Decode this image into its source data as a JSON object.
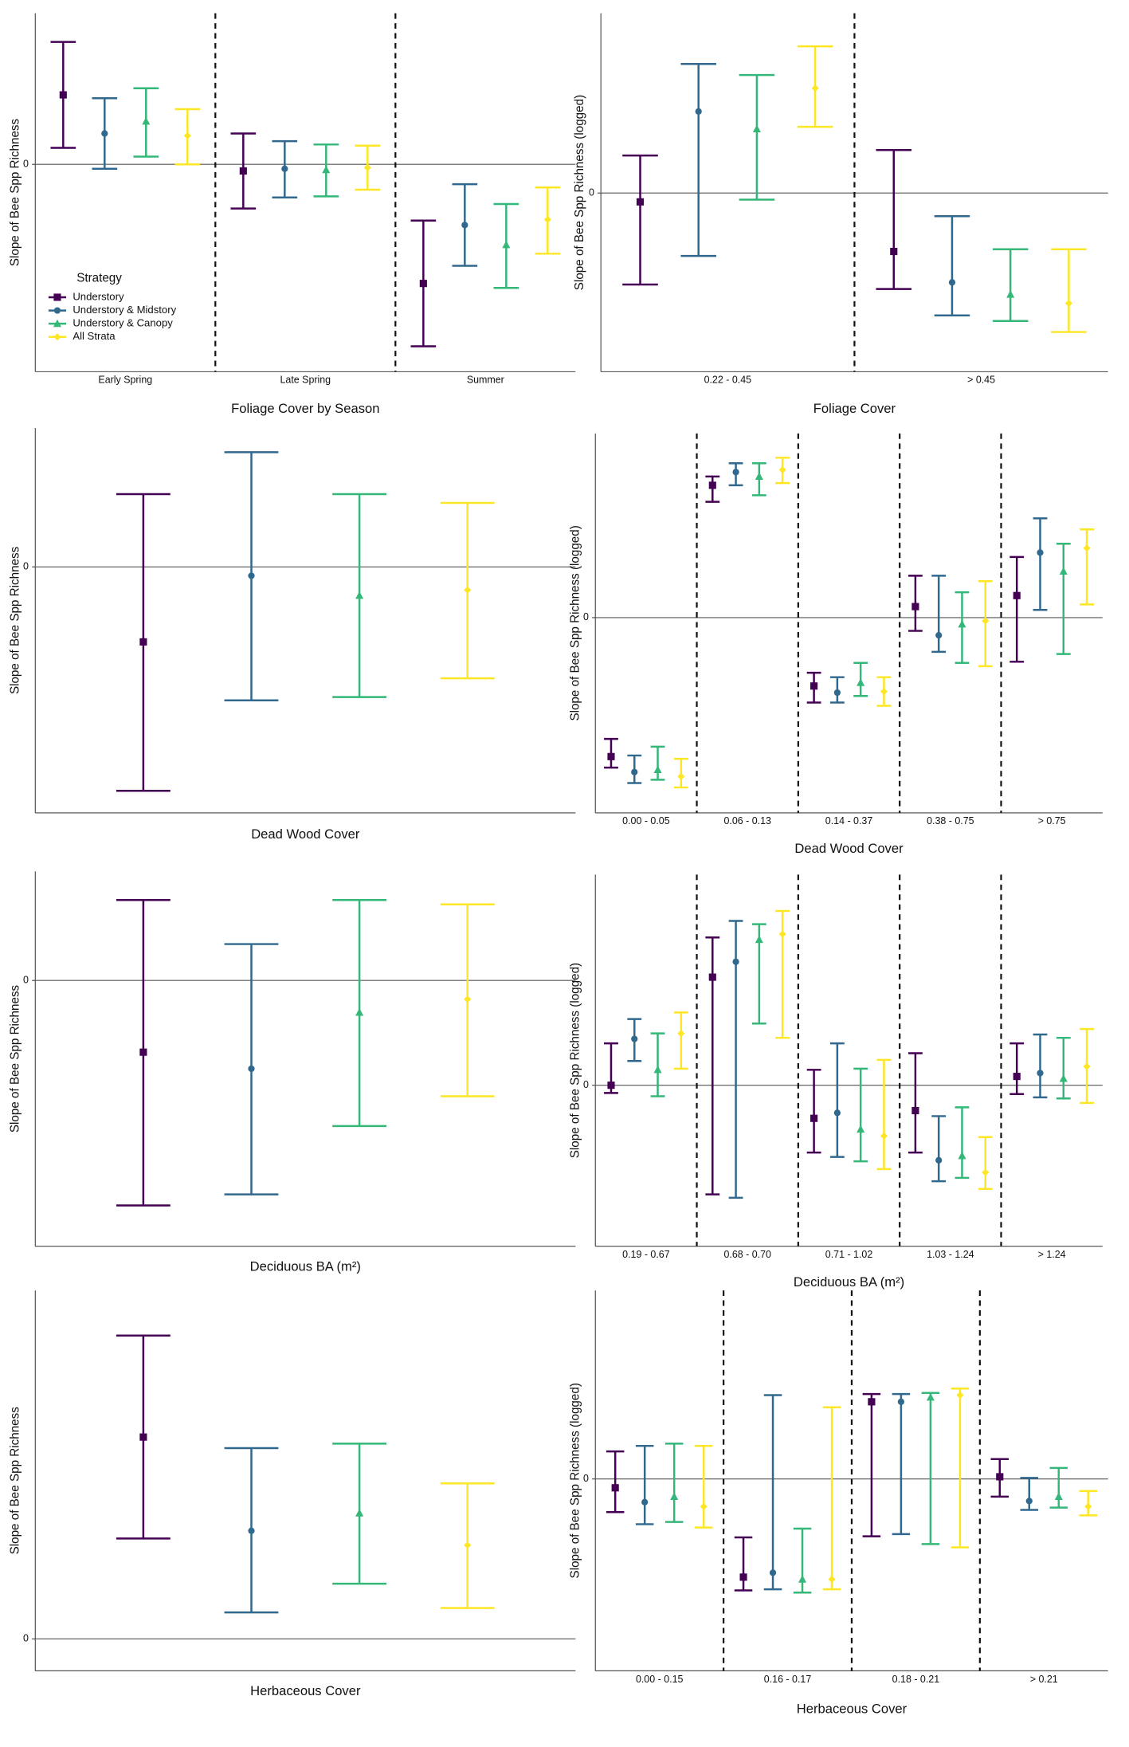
{
  "chart_data": [
    {
      "type": "errorbar",
      "x_label": "Foliage Cover by Season",
      "y_label": "Slope of Bee Spp Richness",
      "categories": [
        "Early Spring",
        "Late Spring",
        "Summer"
      ],
      "dividers": true,
      "ylim": [
        -18.8,
        13.7
      ],
      "yticks": [
        0
      ],
      "grid": true,
      "legend": {
        "title": "Strategy",
        "position": "left"
      },
      "series": [
        {
          "name": "Understory",
          "color": "#440154",
          "marker": "square",
          "values": [
            6.3,
            -0.6,
            -10.8
          ],
          "lower": [
            1.5,
            -4.0,
            -16.5
          ],
          "upper": [
            11.1,
            2.8,
            -5.1
          ]
        },
        {
          "name": "Understory & Midstory",
          "color": "#31688e",
          "marker": "circle",
          "values": [
            2.8,
            -0.4,
            -5.5
          ],
          "lower": [
            -0.4,
            -3.0,
            -9.2
          ],
          "upper": [
            6.0,
            2.1,
            -1.8
          ]
        },
        {
          "name": "Understory & Canopy",
          "color": "#35b779",
          "marker": "triangle",
          "values": [
            3.9,
            -0.5,
            -7.3
          ],
          "lower": [
            0.7,
            -2.9,
            -11.2
          ],
          "upper": [
            6.9,
            1.8,
            -3.6
          ]
        },
        {
          "name": "All Strata",
          "color": "#fde725",
          "marker": "diamond",
          "values": [
            2.6,
            -0.3,
            -5.0
          ],
          "lower": [
            0,
            -2.3,
            -8.1
          ],
          "upper": [
            5.0,
            1.7,
            -2.1
          ]
        }
      ]
    },
    {
      "type": "errorbar",
      "x_label": "Foliage Cover",
      "y_label": "Slope of Bee Spp Richness (logged)",
      "categories": [
        "0.22 - 0.45",
        "> 0.45"
      ],
      "dividers": true,
      "ylim": [
        -16.2,
        16.3
      ],
      "yticks": [
        0
      ],
      "grid": true,
      "series": [
        {
          "color": "#440154",
          "marker": "square",
          "values": [
            -0.8,
            -5.3
          ],
          "lower": [
            -8.3,
            -8.7
          ],
          "upper": [
            3.4,
            3.9
          ]
        },
        {
          "color": "#31688e",
          "marker": "circle",
          "values": [
            7.4,
            -8.1
          ],
          "lower": [
            -5.7,
            -11.1
          ],
          "upper": [
            11.7,
            -2.1
          ]
        },
        {
          "color": "#35b779",
          "marker": "triangle",
          "values": [
            5.8,
            -9.2
          ],
          "lower": [
            -0.6,
            -11.6
          ],
          "upper": [
            10.7,
            -5.1
          ]
        },
        {
          "color": "#fde725",
          "marker": "diamond",
          "values": [
            9.5,
            -10.0
          ],
          "lower": [
            6.0,
            -12.6
          ],
          "upper": [
            13.3,
            -5.1
          ]
        }
      ]
    },
    {
      "type": "errorbar",
      "x_label": "Dead Wood Cover",
      "y_label": "Slope of Bee Spp Richness",
      "dividers": false,
      "ylim": [
        -22.3,
        12.6
      ],
      "yticks": [
        0
      ],
      "grid": true,
      "series": [
        {
          "color": "#440154",
          "marker": "square",
          "values": [
            -6.8
          ],
          "lower": [
            -20.3
          ],
          "upper": [
            6.6
          ]
        },
        {
          "color": "#31688e",
          "marker": "circle",
          "values": [
            -0.8
          ],
          "lower": [
            -12.1
          ],
          "upper": [
            10.4
          ]
        },
        {
          "color": "#35b779",
          "marker": "triangle",
          "values": [
            -2.6
          ],
          "lower": [
            -11.8
          ],
          "upper": [
            6.6
          ]
        },
        {
          "color": "#fde725",
          "marker": "diamond",
          "values": [
            -2.1
          ],
          "lower": [
            -10.1
          ],
          "upper": [
            5.8
          ]
        }
      ]
    },
    {
      "type": "errorbar",
      "x_label": "Dead Wood Cover",
      "y_label": "Slope of Bee Spp Richness (logged)",
      "categories": [
        "0.00 - 0.05",
        "0.06 - 0.13",
        "0.14 - 0.37",
        "0.38 - 0.75",
        "> 0.75"
      ],
      "dividers": true,
      "ylim": [
        -17.7,
        16.7
      ],
      "yticks": [
        0
      ],
      "grid": true,
      "series": [
        {
          "color": "#440154",
          "marker": "square",
          "values": [
            -12.6,
            12.0,
            -6.2,
            1.0,
            2.0
          ],
          "lower": [
            -13.6,
            10.5,
            -7.7,
            -1.2,
            -4.0
          ],
          "upper": [
            -11.0,
            12.8,
            -5.0,
            3.8,
            5.5
          ]
        },
        {
          "color": "#31688e",
          "marker": "circle",
          "values": [
            -14.0,
            13.2,
            -6.8,
            -1.6,
            5.9
          ],
          "lower": [
            -15.0,
            12.0,
            -7.7,
            -3.1,
            0.7
          ],
          "upper": [
            -12.5,
            14.0,
            -5.4,
            3.8,
            9.0
          ]
        },
        {
          "color": "#35b779",
          "marker": "triangle",
          "values": [
            -13.8,
            12.8,
            -5.9,
            -0.6,
            4.2
          ],
          "lower": [
            -14.7,
            11.1,
            -7.1,
            -4.1,
            -3.3
          ],
          "upper": [
            -11.7,
            14.0,
            -4.1,
            2.3,
            6.7
          ]
        },
        {
          "color": "#fde725",
          "marker": "diamond",
          "values": [
            -14.4,
            13.4,
            -6.7,
            -0.3,
            6.3
          ],
          "lower": [
            -15.4,
            12.2,
            -8.0,
            -4.4,
            1.2
          ],
          "upper": [
            -12.8,
            14.5,
            -5.4,
            3.3,
            8.0
          ]
        }
      ]
    },
    {
      "type": "errorbar",
      "x_label": "Deciduous BA (m²)",
      "y_label": "Slope of Bee Spp Richness",
      "dividers": false,
      "ylim": [
        -24.1,
        9.9
      ],
      "yticks": [
        0
      ],
      "grid": true,
      "series": [
        {
          "color": "#440154",
          "marker": "square",
          "values": [
            -6.5
          ],
          "lower": [
            -20.4
          ],
          "upper": [
            7.3
          ]
        },
        {
          "color": "#31688e",
          "marker": "circle",
          "values": [
            -8.0
          ],
          "lower": [
            -19.4
          ],
          "upper": [
            3.3
          ]
        },
        {
          "color": "#35b779",
          "marker": "triangle",
          "values": [
            -2.9
          ],
          "lower": [
            -13.2
          ],
          "upper": [
            7.3
          ]
        },
        {
          "color": "#fde725",
          "marker": "diamond",
          "values": [
            -1.7
          ],
          "lower": [
            -10.5
          ],
          "upper": [
            6.9
          ]
        }
      ]
    },
    {
      "type": "errorbar",
      "x_label": "Deciduous BA (m²)",
      "y_label": "Slope of Bee Spp Richness (logged)",
      "categories": [
        "0.19 - 0.67",
        "0.68 - 0.70",
        "0.71 - 1.02",
        "1.03 - 1.24",
        "> 1.24"
      ],
      "dividers": true,
      "ylim": [
        -14.6,
        19.1
      ],
      "yticks": [
        0
      ],
      "grid": true,
      "series": [
        {
          "color": "#440154",
          "marker": "square",
          "values": [
            0,
            9.8,
            -3.0,
            -2.3,
            0.8
          ],
          "lower": [
            -0.7,
            -9.9,
            -6.1,
            -6.1,
            -0.8
          ],
          "upper": [
            3.8,
            13.4,
            1.4,
            2.9,
            3.8
          ]
        },
        {
          "color": "#31688e",
          "marker": "circle",
          "values": [
            4.2,
            11.2,
            -2.5,
            -6.8,
            1.1
          ],
          "lower": [
            2.2,
            -10.2,
            -6.5,
            -8.7,
            -1.1
          ],
          "upper": [
            6.0,
            14.9,
            3.8,
            -2.8,
            4.6
          ]
        },
        {
          "color": "#35b779",
          "marker": "triangle",
          "values": [
            1.4,
            13.2,
            -4.0,
            -6.4,
            0.6
          ],
          "lower": [
            -1.0,
            5.6,
            -6.9,
            -8.4,
            -1.2
          ],
          "upper": [
            4.7,
            14.6,
            1.5,
            -2.0,
            4.3
          ]
        },
        {
          "color": "#fde725",
          "marker": "diamond",
          "values": [
            4.7,
            13.7,
            -4.6,
            -7.9,
            1.7
          ],
          "lower": [
            1.5,
            4.3,
            -7.6,
            -9.4,
            -1.6
          ],
          "upper": [
            6.6,
            15.8,
            2.3,
            -4.7,
            5.1
          ]
        }
      ]
    },
    {
      "type": "errorbar",
      "x_label": "Herbaceous Cover",
      "y_label": "Slope of Bee Spp Richness",
      "dividers": false,
      "ylim": [
        -2.9,
        31.6
      ],
      "yticks": [
        0
      ],
      "grid": true,
      "series": [
        {
          "color": "#440154",
          "marker": "square",
          "values": [
            18.3
          ],
          "lower": [
            9.1
          ],
          "upper": [
            27.5
          ]
        },
        {
          "color": "#31688e",
          "marker": "circle",
          "values": [
            9.8
          ],
          "lower": [
            2.4
          ],
          "upper": [
            17.3
          ]
        },
        {
          "color": "#35b779",
          "marker": "triangle",
          "values": [
            11.4
          ],
          "lower": [
            5.0
          ],
          "upper": [
            17.7
          ]
        },
        {
          "color": "#fde725",
          "marker": "diamond",
          "values": [
            8.5
          ],
          "lower": [
            2.8
          ],
          "upper": [
            14.1
          ]
        }
      ]
    },
    {
      "type": "errorbar",
      "x_label": "Herbaceous Cover",
      "y_label": "Slope of Bee Spp Richness (logged)",
      "categories": [
        "0.00 - 0.15",
        "0.16 - 0.17",
        "0.18 - 0.21",
        "> 0.21"
      ],
      "dividers": true,
      "ylim": [
        -17.4,
        17.1
      ],
      "yticks": [
        0
      ],
      "grid": true,
      "series": [
        {
          "color": "#440154",
          "marker": "square",
          "values": [
            -0.8,
            -8.9,
            7.0,
            0.2
          ],
          "lower": [
            -3.0,
            -10.1,
            -5.2,
            -1.6
          ],
          "upper": [
            2.5,
            -5.3,
            7.7,
            1.8
          ]
        },
        {
          "color": "#31688e",
          "marker": "circle",
          "values": [
            -2.1,
            -8.5,
            7.0,
            -2.0
          ],
          "lower": [
            -4.1,
            -10.0,
            -5.0,
            -2.8
          ],
          "upper": [
            3.0,
            7.6,
            7.7,
            0.1
          ]
        },
        {
          "color": "#35b779",
          "marker": "triangle",
          "values": [
            -1.6,
            -9.1,
            7.4,
            -1.6
          ],
          "lower": [
            -3.9,
            -10.3,
            -5.9,
            -2.6
          ],
          "upper": [
            3.2,
            -4.5,
            7.8,
            1.0
          ]
        },
        {
          "color": "#fde725",
          "marker": "diamond",
          "values": [
            -2.5,
            -9.1,
            7.6,
            -2.5
          ],
          "lower": [
            -4.4,
            -10.0,
            -6.2,
            -3.3
          ],
          "upper": [
            3.0,
            6.5,
            8.2,
            -1.1
          ]
        }
      ]
    }
  ]
}
